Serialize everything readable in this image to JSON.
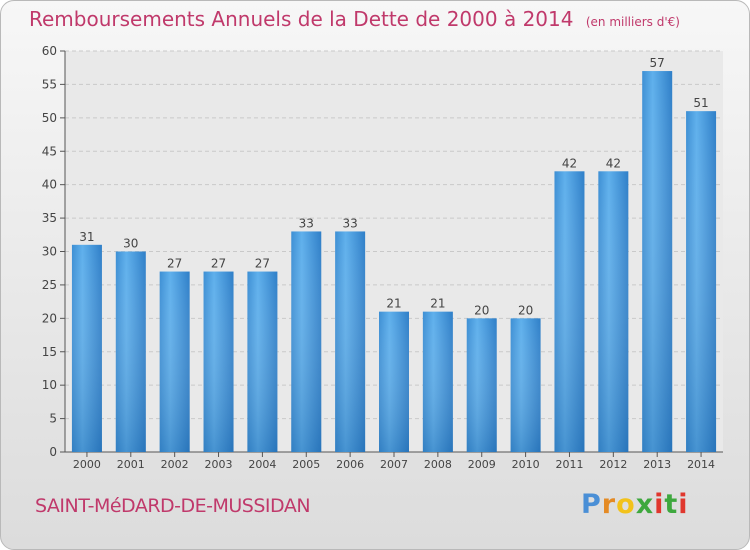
{
  "chart_data": {
    "type": "bar",
    "title": "Remboursements Annuels de la Dette de 2000 à 2014",
    "subtitle": "(en milliers d'€)",
    "categories": [
      "2000",
      "2001",
      "2002",
      "2003",
      "2004",
      "2005",
      "2006",
      "2007",
      "2008",
      "2009",
      "2010",
      "2011",
      "2012",
      "2013",
      "2014"
    ],
    "values": [
      31,
      30,
      27,
      27,
      27,
      33,
      33,
      21,
      21,
      20,
      20,
      42,
      42,
      57,
      51
    ],
    "ylim": [
      0,
      60
    ],
    "yticks": [
      0,
      5,
      10,
      15,
      20,
      25,
      30,
      35,
      40,
      45,
      50,
      55,
      60
    ],
    "xlabel": "",
    "ylabel": "",
    "grid": true,
    "bar_color": "#4a9fe0"
  },
  "footer": {
    "city": "SAINT-MéDARD-DE-MUSSIDAN",
    "logo": "Proxiti"
  }
}
